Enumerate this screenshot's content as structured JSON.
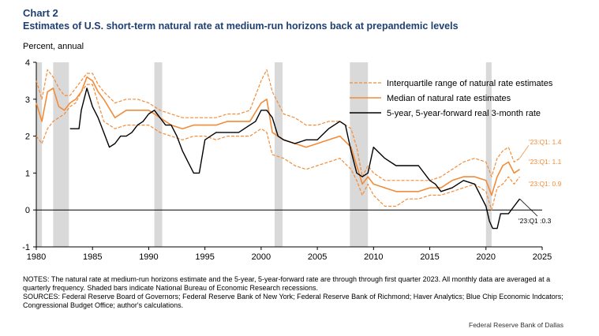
{
  "header": {
    "chart_number": "Chart 2",
    "title": "Estimates of U.S. short-term natural rate at medium-run horizons back at prepandemic levels",
    "unit_label": "Percent, annual"
  },
  "notes": {
    "line1": "NOTES: The natural rate at medium-run horizons estimate and the 5-year, 5-year-forward rate are through through first quarter 2023. All monthly data are averaged at a quarterly frequency. Shaded bars indicate National Bureau of Economic Research recessions.",
    "line2": "SOURCES: Federal Reserve Board of Governors; Federal Reserve Bank of New York; Federal Reserve Bank of Richmond; Haver Analytics; Blue Chip Economic Indcators; Congressional Budget Office; author's calculations."
  },
  "credit": "Federal Reserve Bank of Dallas",
  "colors": {
    "orange": "#f28c38",
    "black": "#000000",
    "recession": "#d9d9d9",
    "title": "#1f3f73"
  },
  "chart_data": {
    "type": "line",
    "title": "Estimates of U.S. short-term natural rate at medium-run horizons back at prepandemic levels",
    "ylabel": "Percent, annual",
    "xlim": [
      1980,
      2025
    ],
    "ylim": [
      -1,
      4
    ],
    "x_ticks": [
      1980,
      1985,
      1990,
      1995,
      2000,
      2005,
      2010,
      2015,
      2020,
      2025
    ],
    "y_ticks": [
      -1,
      0,
      1,
      2,
      3,
      4
    ],
    "recessions": [
      [
        1980.0,
        1980.5
      ],
      [
        1981.5,
        1982.9
      ],
      [
        1990.5,
        1991.2
      ],
      [
        2001.2,
        2001.9
      ],
      [
        2007.9,
        2009.5
      ],
      [
        2020.0,
        2020.5
      ]
    ],
    "legend": [
      "Interquartile range of natural rate estimates",
      "Median of natural rate estimates",
      "5-year, 5-year-forward real 3-month rate"
    ],
    "annotations": [
      "'23:Q1: 1.4",
      "'23:Q1: 1.1",
      "'23:Q1: 0.9",
      "'23:Q1 :0.3"
    ],
    "series": [
      {
        "name": "Median of natural rate estimates",
        "style": "solid-orange",
        "x": [
          1980,
          1980.5,
          1981,
          1981.5,
          1982,
          1982.5,
          1983,
          1983.5,
          1984,
          1984.5,
          1985,
          1985.5,
          1986,
          1987,
          1988,
          1989,
          1990,
          1990.5,
          1991,
          1992,
          1993,
          1994,
          1995,
          1996,
          1997,
          1998,
          1999,
          2000,
          2000.5,
          2001,
          2002,
          2003,
          2004,
          2005,
          2006,
          2007,
          2008,
          2008.5,
          2009,
          2009.5,
          2010,
          2011,
          2012,
          2013,
          2014,
          2015,
          2016,
          2017,
          2018,
          2019,
          2020,
          2020.5,
          2021,
          2021.5,
          2022,
          2022.5,
          2023
        ],
        "values": [
          2.9,
          2.4,
          3.2,
          3.3,
          2.8,
          2.7,
          2.9,
          3.0,
          3.2,
          3.6,
          3.5,
          3.2,
          3.0,
          2.5,
          2.7,
          2.7,
          2.7,
          2.6,
          2.5,
          2.3,
          2.2,
          2.3,
          2.3,
          2.3,
          2.4,
          2.4,
          2.4,
          2.9,
          3.0,
          2.1,
          1.9,
          1.8,
          1.7,
          1.8,
          1.9,
          2.0,
          1.7,
          1.2,
          0.7,
          0.9,
          0.7,
          0.6,
          0.5,
          0.5,
          0.5,
          0.6,
          0.6,
          0.8,
          0.9,
          0.9,
          0.8,
          0.4,
          0.9,
          1.2,
          1.3,
          1.0,
          1.1
        ]
      },
      {
        "name": "Interquartile range (upper)",
        "style": "dashed-orange",
        "x": [
          1980,
          1980.5,
          1981,
          1981.5,
          1982,
          1982.5,
          1983,
          1983.5,
          1984,
          1984.5,
          1985,
          1985.5,
          1986,
          1987,
          1988,
          1989,
          1990,
          1990.5,
          1991,
          1992,
          1993,
          1994,
          1995,
          1996,
          1997,
          1998,
          1999,
          2000,
          2000.5,
          2001,
          2002,
          2003,
          2004,
          2005,
          2006,
          2007,
          2008,
          2008.5,
          2009,
          2009.5,
          2010,
          2011,
          2012,
          2013,
          2014,
          2015,
          2016,
          2017,
          2018,
          2019,
          2020,
          2020.5,
          2021,
          2021.5,
          2022,
          2022.5,
          2023
        ],
        "values": [
          3.5,
          3.0,
          3.8,
          3.6,
          3.3,
          3.1,
          3.1,
          3.3,
          3.5,
          3.7,
          3.7,
          3.4,
          3.2,
          2.9,
          3.0,
          3.0,
          2.9,
          2.8,
          2.7,
          2.6,
          2.5,
          2.5,
          2.5,
          2.5,
          2.6,
          2.6,
          2.7,
          3.5,
          3.8,
          3.2,
          2.6,
          2.5,
          2.3,
          2.3,
          2.4,
          2.4,
          2.2,
          1.7,
          0.9,
          1.2,
          1.0,
          0.8,
          0.8,
          0.8,
          0.8,
          0.8,
          0.9,
          1.1,
          1.3,
          1.4,
          1.3,
          0.9,
          1.4,
          1.6,
          1.7,
          1.3,
          1.4
        ]
      },
      {
        "name": "Interquartile range (lower)",
        "style": "dashed-orange",
        "x": [
          1980,
          1980.5,
          1981,
          1981.5,
          1982,
          1982.5,
          1983,
          1983.5,
          1984,
          1984.5,
          1985,
          1985.5,
          1986,
          1987,
          1988,
          1989,
          1990,
          1990.5,
          1991,
          1992,
          1993,
          1994,
          1995,
          1996,
          1997,
          1998,
          1999,
          2000,
          2000.5,
          2001,
          2002,
          2003,
          2004,
          2005,
          2006,
          2007,
          2008,
          2008.5,
          2009,
          2009.5,
          2010,
          2011,
          2012,
          2013,
          2014,
          2015,
          2016,
          2017,
          2018,
          2019,
          2020,
          2020.5,
          2021,
          2021.5,
          2022,
          2022.5,
          2023
        ],
        "values": [
          2.0,
          1.8,
          2.2,
          2.4,
          2.5,
          2.6,
          2.8,
          2.9,
          3.2,
          3.4,
          3.4,
          2.9,
          2.4,
          2.2,
          2.3,
          2.3,
          2.3,
          2.2,
          2.1,
          2.0,
          1.9,
          2.0,
          2.0,
          1.9,
          2.0,
          2.0,
          2.0,
          2.2,
          2.1,
          1.5,
          1.4,
          1.2,
          1.1,
          1.2,
          1.3,
          1.4,
          1.1,
          0.8,
          0.4,
          0.7,
          0.4,
          0.1,
          0.1,
          0.3,
          0.3,
          0.4,
          0.4,
          0.5,
          0.6,
          0.7,
          0.5,
          0.0,
          0.6,
          0.7,
          0.9,
          0.7,
          0.9
        ]
      },
      {
        "name": "5-year, 5-year-forward real 3-month rate",
        "style": "solid-black",
        "x": [
          1983,
          1983.8,
          1984,
          1984.5,
          1985,
          1985.5,
          1986,
          1986.5,
          1987,
          1987.5,
          1988,
          1988.5,
          1989,
          1989.5,
          1990,
          1990.5,
          1991,
          1991.5,
          1992,
          1992.5,
          1993,
          1993.5,
          1994,
          1994.5,
          1995,
          1995.5,
          1996,
          1997,
          1998,
          1999,
          1999.5,
          2000,
          2000.5,
          2001,
          2001.5,
          2002,
          2003,
          2004,
          2005,
          2006,
          2007,
          2007.5,
          2008,
          2008.5,
          2009,
          2009.5,
          2010,
          2011,
          2012,
          2013,
          2014,
          2015,
          2015.5,
          2016,
          2017,
          2018,
          2019,
          2019.5,
          2020,
          2020.3,
          2020.6,
          2021,
          2021.3,
          2021.6,
          2022,
          2022.5,
          2023
        ],
        "values": [
          2.2,
          2.2,
          2.7,
          3.3,
          2.8,
          2.5,
          2.1,
          1.7,
          1.8,
          2.0,
          2.0,
          2.1,
          2.3,
          2.4,
          2.6,
          2.7,
          2.5,
          2.3,
          2.3,
          2.0,
          1.6,
          1.3,
          1.0,
          1.0,
          1.9,
          2.0,
          2.1,
          2.1,
          2.1,
          2.3,
          2.4,
          2.7,
          2.7,
          2.5,
          2.0,
          1.9,
          1.8,
          1.9,
          1.9,
          2.2,
          2.4,
          2.3,
          1.6,
          1.0,
          0.9,
          1.0,
          1.7,
          1.4,
          1.2,
          1.2,
          1.2,
          0.8,
          0.7,
          0.5,
          0.6,
          0.8,
          0.7,
          0.4,
          0.1,
          -0.3,
          -0.5,
          -0.5,
          -0.1,
          -0.1,
          -0.1,
          0.1,
          0.3
        ]
      }
    ]
  }
}
